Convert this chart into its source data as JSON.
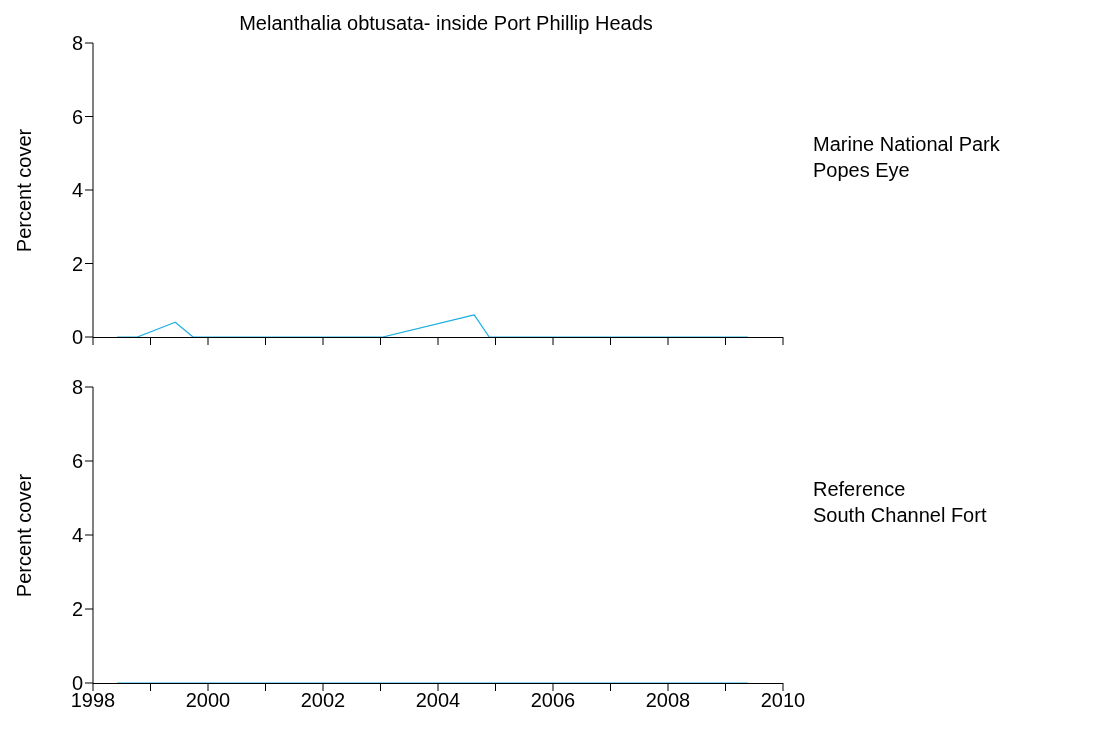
{
  "chart_data": [
    {
      "type": "line",
      "title": "Melanthalia obtusata- inside Port Phillip Heads",
      "ylabel": "Percent cover",
      "annotations": [
        "Marine National Park",
        "Popes Eye"
      ],
      "xlim": [
        1998,
        2010
      ],
      "xticks": [
        {
          "value": 1998,
          "label": null
        },
        {
          "value": 1999,
          "label": null
        },
        {
          "value": 2000,
          "label": null
        },
        {
          "value": 2001,
          "label": null
        },
        {
          "value": 2002,
          "label": null
        },
        {
          "value": 2003,
          "label": null
        },
        {
          "value": 2004,
          "label": null
        },
        {
          "value": 2005,
          "label": null
        },
        {
          "value": 2006,
          "label": null
        },
        {
          "value": 2007,
          "label": null
        },
        {
          "value": 2008,
          "label": null
        },
        {
          "value": 2009,
          "label": null
        },
        {
          "value": 2010,
          "label": null
        }
      ],
      "ylim": [
        0,
        8
      ],
      "yticks": [
        0,
        2,
        4,
        6,
        8
      ],
      "tick_labels": "y",
      "grid": false,
      "legend": false,
      "marker": "none",
      "line_style": "solid",
      "series": [
        {
          "color": "#1aafe0",
          "x": [
            1998.42,
            1998.77,
            1999.43,
            1999.74,
            2003.04,
            2004.63,
            2004.89,
            2009.39
          ],
          "values": [
            0,
            0,
            0.4,
            0,
            0,
            0.6,
            0,
            0
          ]
        }
      ]
    },
    {
      "type": "line",
      "ylabel": "Percent cover",
      "annotations": [
        "Reference",
        "South Channel Fort"
      ],
      "xlim": [
        1998,
        2010
      ],
      "xticks": [
        1998,
        {
          "value": 1999,
          "label": null
        },
        2000,
        {
          "value": 2001,
          "label": null
        },
        2002,
        {
          "value": 2003,
          "label": null
        },
        2004,
        {
          "value": 2005,
          "label": null
        },
        2006,
        {
          "value": 2007,
          "label": null
        },
        2008,
        {
          "value": 2009,
          "label": null
        },
        2010
      ],
      "ylim": [
        0,
        8
      ],
      "yticks": [
        0,
        2,
        4,
        6,
        8
      ],
      "grid": false,
      "legend": false,
      "marker": "none",
      "line_style": "solid",
      "series": [
        {
          "color": "#1aafe0",
          "x": [
            1998.42,
            2009.39
          ],
          "values": [
            0,
            0
          ]
        }
      ]
    }
  ]
}
